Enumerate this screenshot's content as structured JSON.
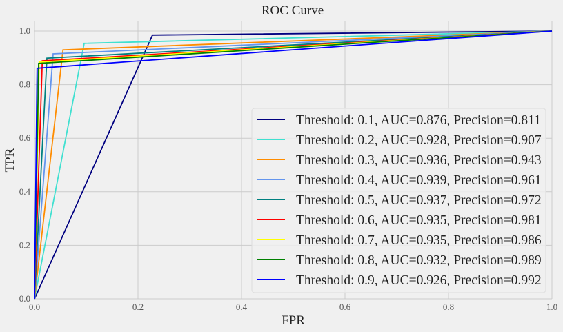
{
  "chart_data": {
    "type": "line",
    "title": "ROC Curve",
    "xlabel": "FPR",
    "ylabel": "TPR",
    "xlim": [
      0.0,
      1.0
    ],
    "ylim": [
      0.0,
      1.05
    ],
    "xticks": [
      "0.0",
      "0.2",
      "0.4",
      "0.6",
      "0.8",
      "1.0"
    ],
    "yticks": [
      "0.0",
      "0.2",
      "0.4",
      "0.6",
      "0.8",
      "1.0"
    ],
    "grid": true,
    "legend_position": "lower-right",
    "series": [
      {
        "name": "Threshold: 0.1, AUC=0.876, Precision=0.811",
        "color": "#000080",
        "x": [
          0.0,
          0.228,
          1.0
        ],
        "y": [
          0.0,
          0.985,
          1.0
        ]
      },
      {
        "name": "Threshold: 0.2, AUC=0.928, Precision=0.907",
        "color": "#40e0d0",
        "x": [
          0.0,
          0.096,
          1.0
        ],
        "y": [
          0.0,
          0.954,
          1.0
        ]
      },
      {
        "name": "Threshold: 0.3, AUC=0.936, Precision=0.943",
        "color": "#ff8c00",
        "x": [
          0.0,
          0.055,
          1.0
        ],
        "y": [
          0.0,
          0.93,
          1.0
        ]
      },
      {
        "name": "Threshold: 0.4, AUC=0.939, Precision=0.961",
        "color": "#6495ed",
        "x": [
          0.0,
          0.036,
          1.0
        ],
        "y": [
          0.0,
          0.915,
          1.0
        ]
      },
      {
        "name": "Threshold: 0.5, AUC=0.937, Precision=0.972",
        "color": "#008080",
        "x": [
          0.0,
          0.024,
          1.0
        ],
        "y": [
          0.0,
          0.899,
          1.0
        ]
      },
      {
        "name": "Threshold: 0.6, AUC=0.935, Precision=0.981",
        "color": "#ff0000",
        "x": [
          0.0,
          0.015,
          1.0
        ],
        "y": [
          0.0,
          0.889,
          1.0
        ]
      },
      {
        "name": "Threshold: 0.7, AUC=0.935, Precision=0.986",
        "color": "#ffff00",
        "x": [
          0.0,
          0.009,
          1.0
        ],
        "y": [
          0.0,
          0.884,
          1.0
        ]
      },
      {
        "name": "Threshold: 0.8, AUC=0.932, Precision=0.989",
        "color": "#008000",
        "x": [
          0.0,
          0.008,
          1.0
        ],
        "y": [
          0.0,
          0.879,
          1.0
        ]
      },
      {
        "name": "Threshold: 0.9, AUC=0.926, Precision=0.992",
        "color": "#0000ff",
        "x": [
          0.0,
          0.005,
          1.0
        ],
        "y": [
          0.0,
          0.861,
          1.0
        ]
      }
    ]
  }
}
